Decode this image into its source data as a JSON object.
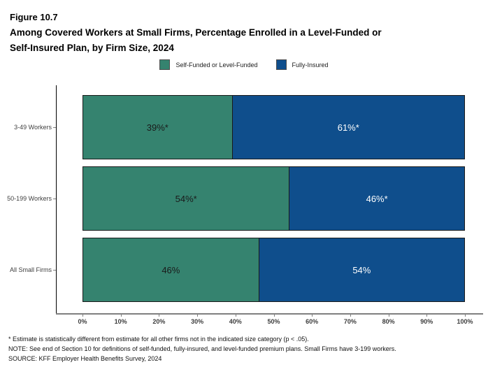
{
  "header": {
    "figure_label": "Figure 10.7",
    "title_lines": [
      "Among Covered Workers at Small Firms, Percentage Enrolled in a Level-Funded or",
      "Self-Insured Plan, by Firm Size, 2024"
    ]
  },
  "colors": {
    "self_funded": "#35836F",
    "fully_insured": "#0F4E8C",
    "bar_outline": "#1A1A1A",
    "label_on_green": "#1A1A1A",
    "label_on_blue": "#FFFFFF"
  },
  "chart_data": {
    "type": "bar",
    "orientation": "horizontal-stacked",
    "title": "Among Covered Workers at Small Firms, Percentage Enrolled in a Level-Funded or Self-Insured Plan, by Firm Size, 2024",
    "categories": [
      "3-49 Workers",
      "50-199 Workers",
      "All Small Firms"
    ],
    "series": [
      {
        "name": "Self-Funded or Level-Funded",
        "values": [
          39,
          54,
          46
        ],
        "labels": [
          "39%*",
          "54%*",
          "46%"
        ],
        "color": "#35836F",
        "label_color": "#1A1A1A"
      },
      {
        "name": "Fully-Insured",
        "values": [
          61,
          46,
          54
        ],
        "labels": [
          "61%*",
          "46%*",
          "54%"
        ],
        "color": "#0F4E8C",
        "label_color": "#FFFFFF"
      }
    ],
    "xlabel": "",
    "ylabel": "",
    "xlim": [
      0,
      100
    ],
    "x_tick_labels": [
      "0%",
      "10%",
      "20%",
      "30%",
      "40%",
      "50%",
      "60%",
      "70%",
      "80%",
      "90%",
      "100%"
    ],
    "grid": false,
    "legend_position": "top-center"
  },
  "footnotes": [
    "* Estimate is statistically different from estimate for all other firms not in the indicated size category (p < .05).",
    "NOTE: See end of Section 10 for definitions of self-funded, fully-insured, and level-funded premium plans. Small Firms have 3-199 workers.",
    "SOURCE: KFF Employer Health Benefits Survey, 2024"
  ]
}
